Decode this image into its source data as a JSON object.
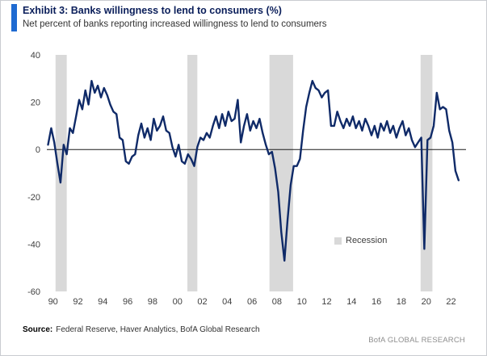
{
  "header": {
    "title": "Exhibit 3: Banks willingness to lend to consumers (%)",
    "subtitle": "Net percent of banks reporting increased willingness to lend to consumers"
  },
  "footer": {
    "source_label": "Source:",
    "source_text": "Federal Reserve, Haver Analytics, BofA Global Research",
    "brand": "BofA GLOBAL RESEARCH"
  },
  "colors": {
    "accent_bar": "#1e6ad1",
    "line": "#0f2a68",
    "recession_band": "#d9d9d9",
    "zero_line": "#1a1a1a",
    "tick_label": "#3f3f3f"
  },
  "chart_data": {
    "type": "line",
    "title": "Banks willingness to lend to consumers (%)",
    "xlabel": "",
    "ylabel": "Net percent",
    "grid": false,
    "ylim": [
      -60,
      40
    ],
    "yticks": [
      40,
      20,
      0,
      -20,
      -40,
      -60
    ],
    "xlim": [
      1989.9,
      2023.6
    ],
    "xtick_years": [
      1990,
      1992,
      1994,
      1996,
      1998,
      2000,
      2002,
      2004,
      2006,
      2008,
      2010,
      2012,
      2014,
      2016,
      2018,
      2020,
      2022
    ],
    "xtick_labels": [
      "90",
      "92",
      "94",
      "96",
      "98",
      "00",
      "02",
      "04",
      "06",
      "08",
      "10",
      "12",
      "14",
      "16",
      "18",
      "20",
      "22"
    ],
    "legend": {
      "label": "Recession",
      "swatch_color": "#d9d9d9",
      "position": "inside-lower-right"
    },
    "recession_bands": [
      [
        1990.6,
        1991.5
      ],
      [
        2001.2,
        2002.0
      ],
      [
        2007.8,
        2009.7
      ],
      [
        2019.95,
        2020.9
      ]
    ],
    "series": [
      {
        "name": "Net percent of banks more willing to lend to consumers",
        "color": "#0f2a68",
        "frequency": "quarterly",
        "start_year": 1990,
        "start_quarter": 1,
        "values": [
          2,
          9,
          3,
          -6,
          -14,
          2,
          -2,
          9,
          7,
          14,
          21,
          17,
          25,
          19,
          29,
          24,
          27,
          22,
          26,
          23,
          19,
          16,
          15,
          5,
          4,
          -5,
          -6,
          -3,
          -2,
          6,
          11,
          5,
          9,
          4,
          13,
          8,
          10,
          14,
          8,
          7,
          1,
          -3,
          2,
          -5,
          -6,
          -2,
          -4,
          -7,
          1,
          5,
          4,
          7,
          5,
          10,
          14,
          9,
          15,
          10,
          16,
          12,
          13,
          21,
          3,
          10,
          15,
          8,
          12,
          9,
          13,
          7,
          2,
          -2,
          -1,
          -8,
          -18,
          -35,
          -47,
          -30,
          -15,
          -7,
          -7,
          -4,
          8,
          18,
          24,
          29,
          26,
          25,
          22,
          24,
          25,
          10,
          10,
          16,
          12,
          9,
          13,
          10,
          14,
          9,
          12,
          8,
          13,
          10,
          6,
          10,
          5,
          11,
          8,
          12,
          7,
          10,
          5,
          9,
          12,
          6,
          9,
          4,
          1,
          3,
          5,
          -42,
          4,
          5,
          10,
          24,
          17,
          18,
          17,
          8,
          3,
          -9,
          -13
        ]
      }
    ]
  }
}
